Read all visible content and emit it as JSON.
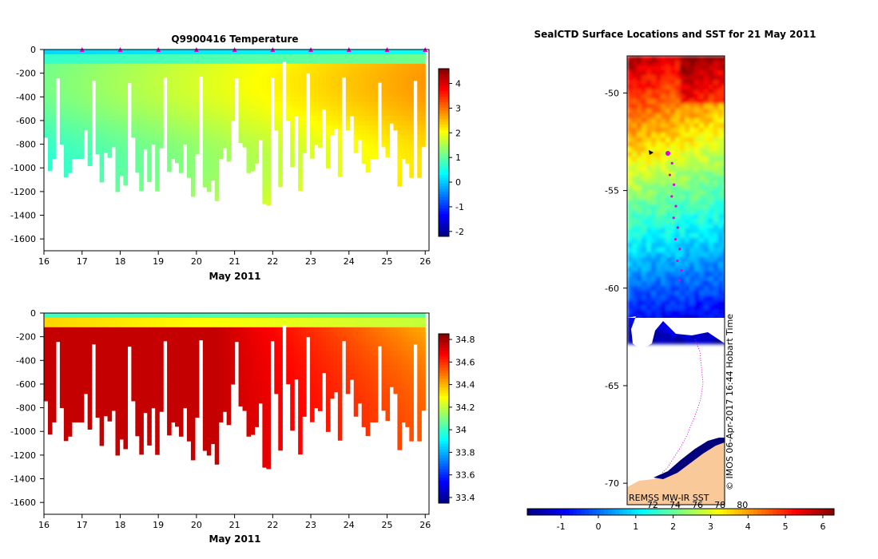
{
  "chart_data": [
    {
      "type": "heatmap",
      "title": "Q9900416  Temperature",
      "xlabel": "May 2011",
      "ylabel": "",
      "xlim": [
        16,
        26.1
      ],
      "ylim": [
        -1700,
        0
      ],
      "x_ticks": [
        "16",
        "17",
        "18",
        "19",
        "20",
        "21",
        "22",
        "23",
        "24",
        "25",
        "26"
      ],
      "y_ticks": [
        "0",
        "-200",
        "-400",
        "-600",
        "-800",
        "-1000",
        "-1200",
        "-1400",
        "-1600"
      ],
      "colorbar": {
        "range": [
          -2.2,
          4.6
        ],
        "ticks": [
          "4",
          "3",
          "2",
          "1",
          "0",
          "-1",
          "-2"
        ]
      },
      "profile_markers_day": [
        17,
        18,
        19,
        20,
        21,
        22,
        23,
        24,
        25,
        26
      ]
    },
    {
      "type": "heatmap",
      "title": "",
      "xlabel": "May 2011",
      "ylabel": "",
      "xlim": [
        16,
        26.1
      ],
      "ylim": [
        -1700,
        0
      ],
      "x_ticks": [
        "16",
        "17",
        "18",
        "19",
        "20",
        "21",
        "22",
        "23",
        "24",
        "25",
        "26"
      ],
      "y_ticks": [
        "0",
        "-200",
        "-400",
        "-600",
        "-800",
        "-1000",
        "-1200",
        "-1400",
        "-1600"
      ],
      "colorbar": {
        "range": [
          33.35,
          34.85
        ],
        "ticks": [
          "34.8",
          "34.6",
          "34.4",
          "34.2",
          "34",
          "33.8",
          "33.6",
          "33.4"
        ]
      }
    },
    {
      "type": "scatter",
      "title": "SealCTD Surface Locations and SST for 21 May 2011",
      "y_ticks": [
        "-50",
        "-55",
        "-60",
        "-65",
        "-70"
      ],
      "ylim": [
        -71.1,
        -48.1
      ],
      "colorbar": {
        "range": [
          -1.9,
          6.3
        ],
        "ticks": [
          "-1",
          "0",
          "1",
          "2",
          "3",
          "4",
          "5",
          "6"
        ],
        "contour_labels": [
          "72",
          "74",
          "76",
          "78",
          "80"
        ]
      },
      "source_label": "REMSS MW-IR SST",
      "credit": "© IMOS 06-Apr-2017 16:44 Hobart Time",
      "track_lat": [
        -53.1,
        -53.6,
        -54.2,
        -54.7,
        -55.3,
        -55.8,
        -56.4,
        -56.9,
        -57.5,
        -58.0,
        -58.6,
        -59.1,
        -59.6
      ]
    }
  ]
}
